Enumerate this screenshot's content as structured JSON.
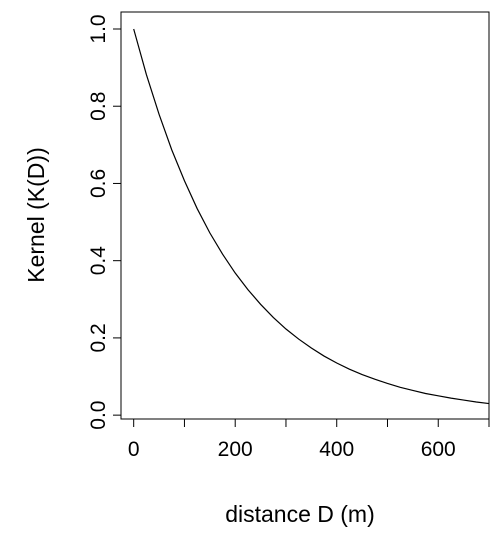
{
  "chart_data": {
    "type": "line",
    "xlabel": "distance D (m)",
    "ylabel": "Kernel (K(D))",
    "x": [
      0,
      25,
      50,
      75,
      100,
      125,
      150,
      175,
      200,
      225,
      250,
      275,
      300,
      325,
      350,
      375,
      400,
      425,
      450,
      475,
      500,
      525,
      550,
      575,
      600,
      625,
      650,
      675,
      700
    ],
    "values": [
      1,
      0.882,
      0.779,
      0.687,
      0.607,
      0.535,
      0.472,
      0.417,
      0.368,
      0.325,
      0.287,
      0.253,
      0.223,
      0.197,
      0.174,
      0.153,
      0.135,
      0.119,
      0.105,
      0.093,
      0.082,
      0.072,
      0.064,
      0.056,
      0.05,
      0.044,
      0.039,
      0.034,
      0.03
    ],
    "color": "#000000",
    "xlim": [
      -25,
      700
    ],
    "ylim": [
      -0.01,
      1.044
    ],
    "xticks": [
      0,
      {
        "value": 100,
        "label": null
      },
      200,
      {
        "value": 300,
        "label": null
      },
      400,
      {
        "value": 500,
        "label": null
      },
      600,
      {
        "value": 700,
        "label": null
      }
    ],
    "yticks": [
      {
        "value": 0,
        "label": "0.0"
      },
      0.2,
      0.4,
      0.6,
      0.8,
      {
        "value": 1,
        "label": "1.0"
      }
    ]
  }
}
